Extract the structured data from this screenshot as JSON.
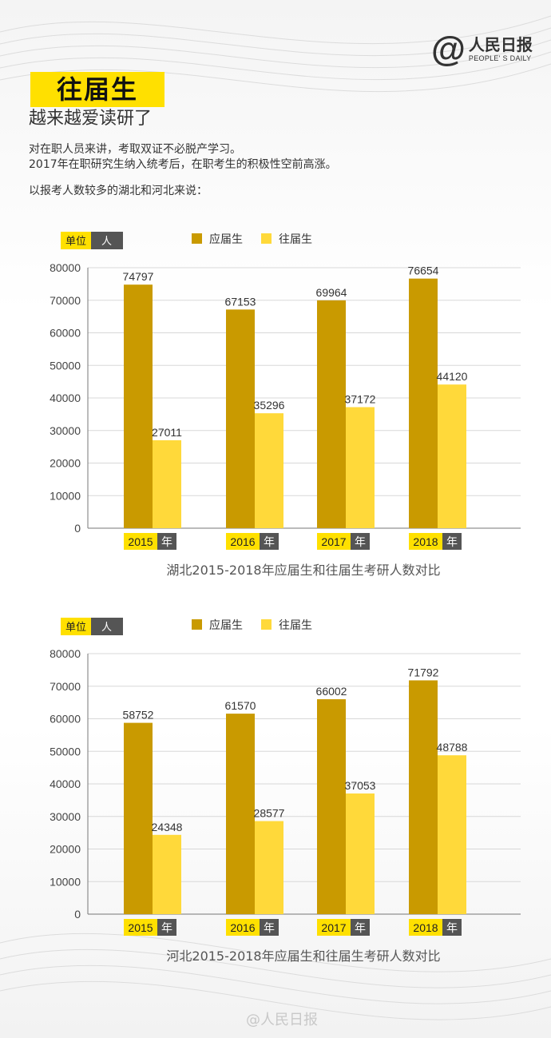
{
  "brand": {
    "logo_at": "@",
    "logo_name": "人民日报",
    "logo_en": "PEOPLE' S DAILY",
    "watermark": "@人民日报"
  },
  "header": {
    "title": "往届生",
    "subtitle": "越来越爱读研了"
  },
  "intro": {
    "line1": "对在职人员来讲，考取双证不必脱产学习。",
    "line2": "2017年在职研究生纳入统考后，在职考生的积极性空前高涨。",
    "line3": "以报考人数较多的湖北和河北来说："
  },
  "colors": {
    "highlight": "#ffe000",
    "series_fresh": "#c99a00",
    "series_past": "#ffd93a",
    "unit_dark": "#555555"
  },
  "chart_data": [
    {
      "type": "bar",
      "title": "湖北2015-2018年应届生和往届生考研人数对比",
      "unit_label": "单位",
      "unit": "人",
      "year_suffix": "年",
      "categories": [
        "2015",
        "2016",
        "2017",
        "2018"
      ],
      "series": [
        {
          "name": "应届生",
          "values": [
            74797,
            67153,
            69964,
            76654
          ]
        },
        {
          "name": "往届生",
          "values": [
            27011,
            35296,
            37172,
            44120
          ]
        }
      ],
      "yticks": [
        0,
        10000,
        20000,
        30000,
        40000,
        50000,
        60000,
        70000,
        80000
      ],
      "ylim": [
        0,
        80000
      ],
      "grid": true,
      "legend": "top"
    },
    {
      "type": "bar",
      "title": "河北2015-2018年应届生和往届生考研人数对比",
      "unit_label": "单位",
      "unit": "人",
      "year_suffix": "年",
      "categories": [
        "2015",
        "2016",
        "2017",
        "2018"
      ],
      "series": [
        {
          "name": "应届生",
          "values": [
            58752,
            61570,
            66002,
            71792
          ]
        },
        {
          "name": "往届生",
          "values": [
            24348,
            28577,
            37053,
            48788
          ]
        }
      ],
      "yticks": [
        0,
        10000,
        20000,
        30000,
        40000,
        50000,
        60000,
        70000,
        80000
      ],
      "ylim": [
        0,
        80000
      ],
      "grid": true,
      "legend": "top"
    }
  ]
}
